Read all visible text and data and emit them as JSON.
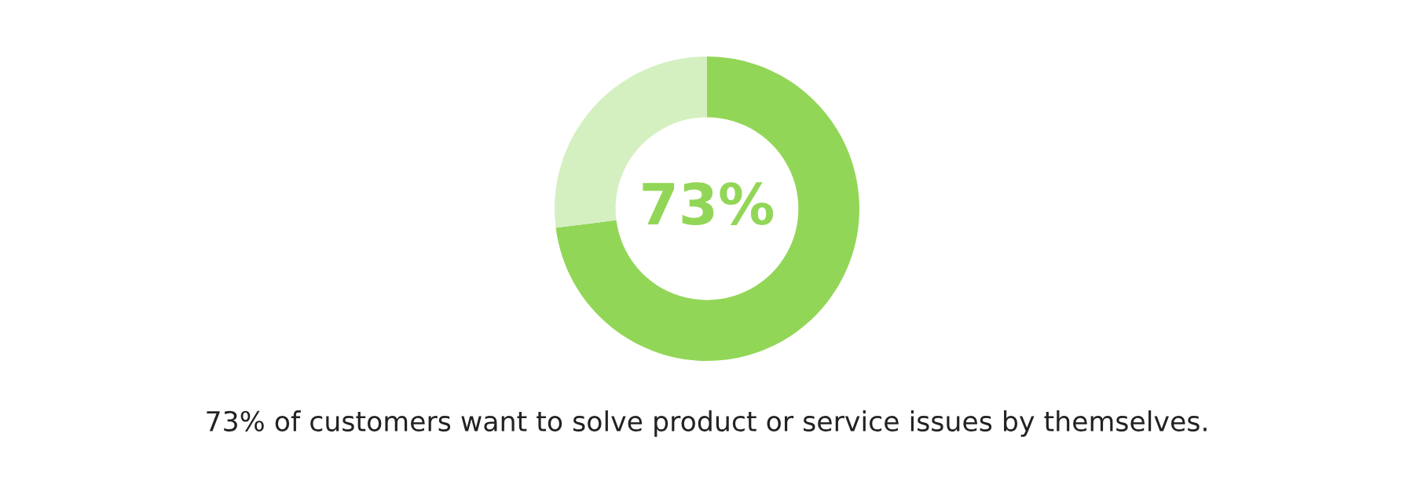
{
  "chart_data": {
    "type": "donut",
    "categories": [
      null,
      null
    ],
    "values": [
      73,
      27
    ],
    "colors": [
      "#92d657",
      "#d4f0c0"
    ],
    "value_labels": [
      "73%",
      null
    ],
    "annotations": [
      "73% of customers want to solve product or service issues by themselves."
    ]
  }
}
